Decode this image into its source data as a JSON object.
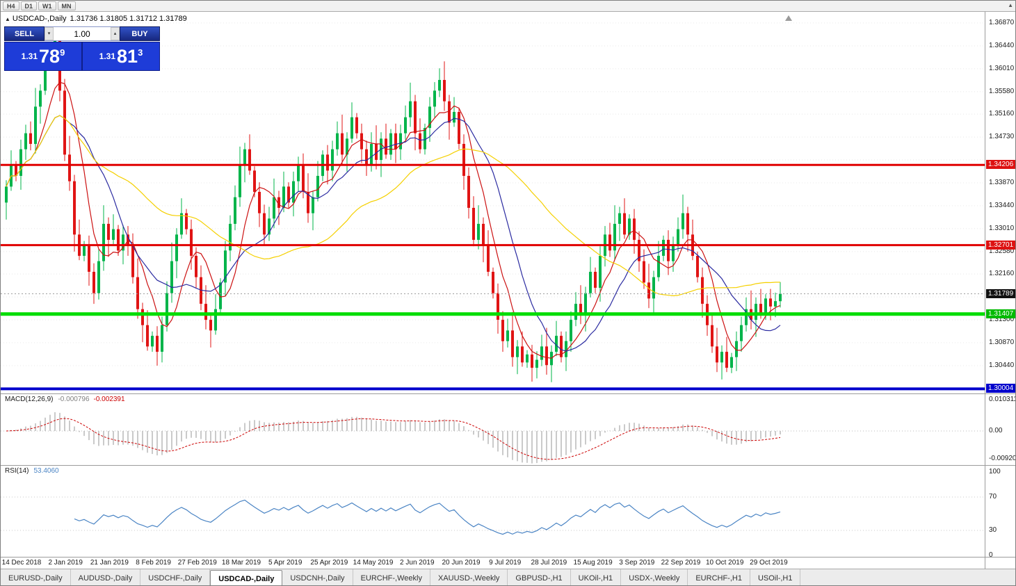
{
  "toolbar": {
    "timeframes": [
      "H4",
      "D1",
      "W1",
      "MN"
    ]
  },
  "icons": {
    "collapse": "▲",
    "spin_up": "▴",
    "spin_down": "▾",
    "scroll_up": "▲"
  },
  "chart": {
    "symbol_text": "USDCAD-,Daily",
    "ohlc_text": "1.31736 1.31805 1.31712 1.31789"
  },
  "trade_panel": {
    "sell_label": "SELL",
    "buy_label": "BUY",
    "volume": "1.00",
    "sell_price": {
      "prefix": "1.31",
      "big": "78",
      "sup": "9"
    },
    "buy_price": {
      "prefix": "1.31",
      "big": "81",
      "sup": "3"
    }
  },
  "indicators": {
    "macd": {
      "name": "MACD(12,26,9)",
      "value1": "-0.000796",
      "value2": "-0.002391"
    },
    "rsi": {
      "name": "RSI(14)",
      "value": "53.4060"
    }
  },
  "price_axis": {
    "ticks": [
      {
        "text": "1.36870",
        "price": 1.3687
      },
      {
        "text": "1.36440",
        "price": 1.3644
      },
      {
        "text": "1.36010",
        "price": 1.3601
      },
      {
        "text": "1.35580",
        "price": 1.3558
      },
      {
        "text": "1.35160",
        "price": 1.3516
      },
      {
        "text": "1.34730",
        "price": 1.3473
      },
      {
        "text": "1.33870",
        "price": 1.3387
      },
      {
        "text": "1.33440",
        "price": 1.3344
      },
      {
        "text": "1.33010",
        "price": 1.3301
      },
      {
        "text": "1.32580",
        "price": 1.3258
      },
      {
        "text": "1.32160",
        "price": 1.3216
      },
      {
        "text": "1.31300",
        "price": 1.313
      },
      {
        "text": "1.30870",
        "price": 1.3087
      },
      {
        "text": "1.30440",
        "price": 1.3044
      }
    ],
    "badges": [
      {
        "text": "1.34206",
        "price": 1.34206,
        "color": "#dd1111"
      },
      {
        "text": "1.32701",
        "price": 1.32701,
        "color": "#dd1111"
      },
      {
        "text": "1.31789",
        "price": 1.31789,
        "color": "#111111"
      },
      {
        "text": "1.31407",
        "price": 1.31407,
        "color": "#00ba00"
      },
      {
        "text": "1.30004",
        "price": 1.30004,
        "color": "#0000cc"
      }
    ]
  },
  "macd_axis": [
    {
      "text": "0.010311",
      "v": 0.010311
    },
    {
      "text": "0.00",
      "v": 0
    },
    {
      "text": "-0.009203",
      "v": -0.009203
    }
  ],
  "rsi_axis": [
    {
      "text": "100",
      "v": 100
    },
    {
      "text": "70",
      "v": 70
    },
    {
      "text": "30",
      "v": 30
    },
    {
      "text": "0",
      "v": 0
    }
  ],
  "tabs": [
    {
      "label": "EURUSD-,Daily",
      "active": false
    },
    {
      "label": "AUDUSD-,Daily",
      "active": false
    },
    {
      "label": "USDCHF-,Daily",
      "active": false
    },
    {
      "label": "USDCAD-,Daily",
      "active": true
    },
    {
      "label": "USDCNH-,Daily",
      "active": false
    },
    {
      "label": "EURCHF-,Weekly",
      "active": false
    },
    {
      "label": "XAUUSD-,Weekly",
      "active": false
    },
    {
      "label": "GBPUSD-,H1",
      "active": false
    },
    {
      "label": "UKOil-,H1",
      "active": false
    },
    {
      "label": "USDX-,Weekly",
      "active": false
    },
    {
      "label": "EURCHF-,H1",
      "active": false
    },
    {
      "label": "USOil-,H1",
      "active": false
    }
  ],
  "colors": {
    "candle_up": "#00b44a",
    "candle_down": "#e01414",
    "ma_fast": "#cc1111",
    "ma_mid": "#2a2aa0",
    "ma_slow": "#f5d000",
    "macd_hist": "#b4b4b4",
    "macd_signal": "#cc0000",
    "rsi_line": "#4a84c4",
    "line_red": "#e00000",
    "line_green": "#00dd00",
    "line_blue": "#0000cc",
    "grid": "#e8e8e8",
    "current_price_line": "#999999"
  },
  "chart_data": {
    "type": "candlestick",
    "symbol": "USDCAD-",
    "timeframe": "Daily",
    "current_bar": {
      "open": 1.31736,
      "high": 1.31805,
      "low": 1.31712,
      "close": 1.31789
    },
    "bid": 1.31789,
    "ask": 1.31813,
    "y_gridlines": [
      1.3687,
      1.3644,
      1.3601,
      1.3558,
      1.3516,
      1.3473,
      1.343,
      1.3387,
      1.3344,
      1.3301,
      1.3258,
      1.3216,
      1.3173,
      1.313,
      1.3087,
      1.3044,
      1.3001
    ],
    "horizontal_lines": [
      {
        "price": 1.34206,
        "color": "#e00000",
        "width": 3
      },
      {
        "price": 1.32701,
        "color": "#e00000",
        "width": 3
      },
      {
        "price": 1.31407,
        "color": "#00dd00",
        "width": 5
      },
      {
        "price": 1.30004,
        "color": "#0000cc",
        "width": 4
      }
    ],
    "current_price_line": 1.31789,
    "x_labels": [
      "14 Dec 2018",
      "2 Jan 2019",
      "21 Jan 2019",
      "8 Feb 2019",
      "27 Feb 2019",
      "18 Mar 2019",
      "5 Apr 2019",
      "25 Apr 2019",
      "14 May 2019",
      "2 Jun 2019",
      "20 Jun 2019",
      "9 Jul 2019",
      "28 Jul 2019",
      "15 Aug 2019",
      "3 Sep 2019",
      "22 Sep 2019",
      "10 Oct 2019",
      "29 Oct 2019"
    ],
    "first_open": 1.335,
    "closes": [
      1.338,
      1.342,
      1.34,
      1.345,
      1.348,
      1.346,
      1.353,
      1.356,
      1.362,
      1.364,
      1.366,
      1.356,
      1.344,
      1.339,
      1.329,
      1.325,
      1.327,
      1.322,
      1.318,
      1.324,
      1.331,
      1.328,
      1.33,
      1.326,
      1.329,
      1.327,
      1.321,
      1.315,
      1.312,
      1.308,
      1.31,
      1.307,
      1.312,
      1.318,
      1.324,
      1.329,
      1.333,
      1.33,
      1.325,
      1.321,
      1.316,
      1.313,
      1.311,
      1.315,
      1.32,
      1.326,
      1.331,
      1.336,
      1.342,
      1.345,
      1.341,
      1.337,
      1.333,
      1.329,
      1.332,
      1.336,
      1.334,
      1.338,
      1.335,
      1.339,
      1.342,
      1.337,
      1.333,
      1.336,
      1.34,
      1.344,
      1.341,
      1.345,
      1.348,
      1.344,
      1.347,
      1.351,
      1.348,
      1.345,
      1.342,
      1.346,
      1.343,
      1.347,
      1.344,
      1.348,
      1.345,
      1.348,
      1.351,
      1.354,
      1.348,
      1.345,
      1.349,
      1.353,
      1.356,
      1.358,
      1.354,
      1.35,
      1.352,
      1.346,
      1.34,
      1.334,
      1.328,
      1.331,
      1.327,
      1.322,
      1.318,
      1.313,
      1.309,
      1.311,
      1.306,
      1.308,
      1.305,
      1.3065,
      1.304,
      1.3055,
      1.308,
      1.3045,
      1.307,
      1.31,
      1.306,
      1.309,
      1.313,
      1.316,
      1.314,
      1.318,
      1.322,
      1.319,
      1.325,
      1.329,
      1.326,
      1.331,
      1.333,
      1.329,
      1.332,
      1.328,
      1.324,
      1.32,
      1.317,
      1.321,
      1.325,
      1.328,
      1.324,
      1.327,
      1.33,
      1.333,
      1.329,
      1.325,
      1.321,
      1.316,
      1.312,
      1.308,
      1.305,
      1.307,
      1.304,
      1.306,
      1.309,
      1.312,
      1.315,
      1.313,
      1.316,
      1.314,
      1.317,
      1.3155,
      1.3165,
      1.31789
    ],
    "wick_upper_pattern": [
      0.0012,
      0.0028,
      0.0008,
      0.0018,
      0.0016,
      0.0022,
      0.0035
    ],
    "wick_lower_pattern": [
      0.002,
      0.001,
      0.0032,
      0.0012,
      0.0026,
      0.0008,
      0.0018
    ],
    "moving_averages": [
      {
        "period": 7,
        "color_key": "ma_fast"
      },
      {
        "period": 14,
        "color_key": "ma_mid"
      },
      {
        "period": 40,
        "color_key": "ma_slow"
      }
    ],
    "macd": {
      "fast": 12,
      "slow": 26,
      "signal": 9,
      "value": -0.000796,
      "signal_value": -0.002391,
      "axis_top": 0.010311,
      "axis_bottom": -0.009203
    },
    "rsi": {
      "period": 14,
      "value": 53.406,
      "levels": [
        70,
        30
      ],
      "range": [
        0,
        100
      ]
    }
  }
}
